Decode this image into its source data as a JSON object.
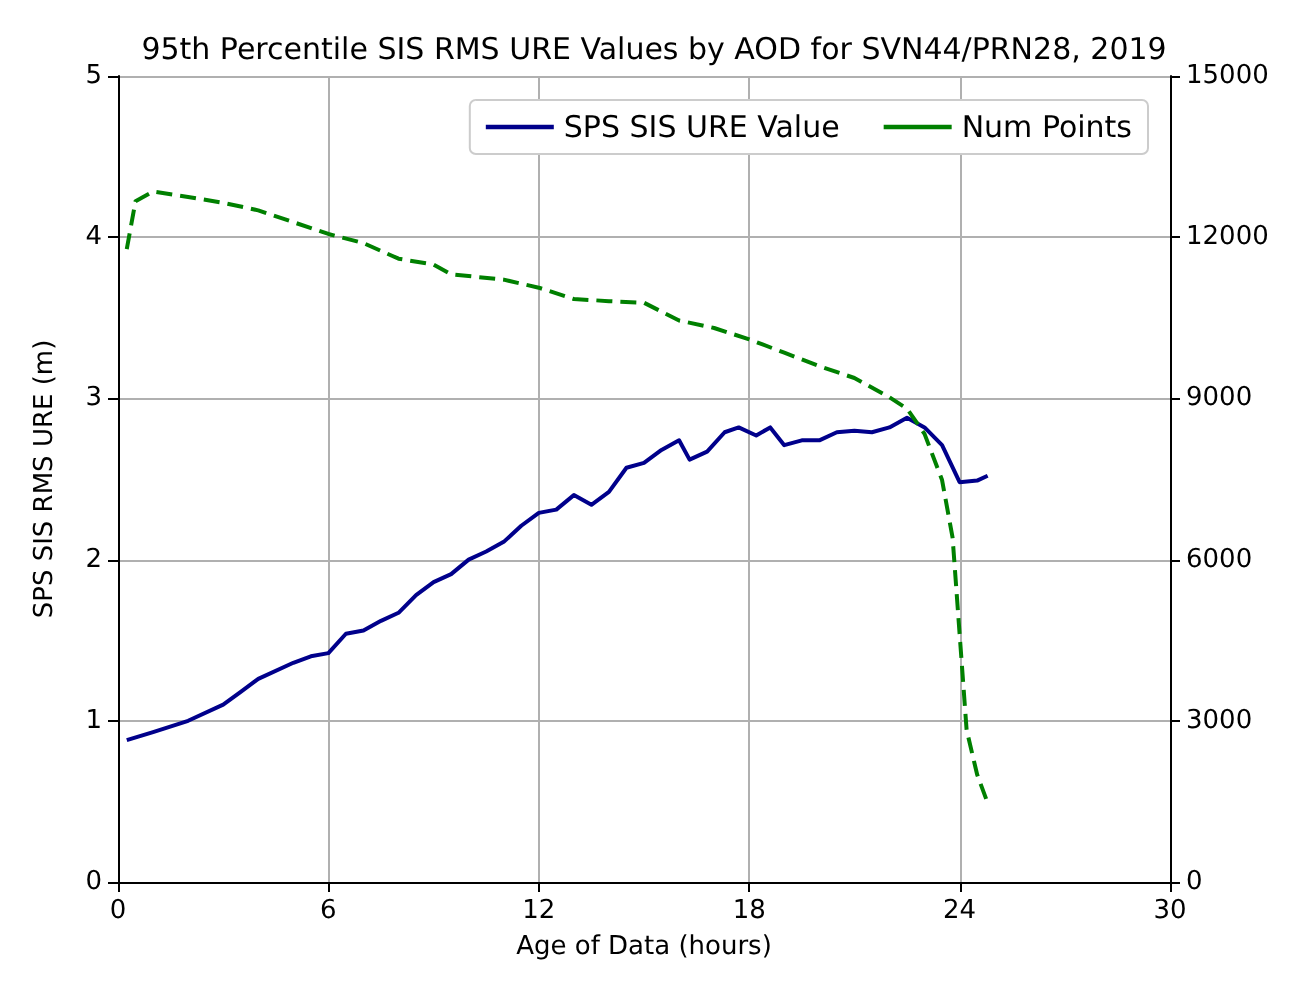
{
  "chart_data": {
    "type": "line",
    "title": "95th Percentile SIS RMS URE Values by AOD for SVN44/PRN28, 2019",
    "xlabel": "Age of Data (hours)",
    "ylabel": "SPS SIS RMS URE (m)",
    "xlim": [
      0,
      30
    ],
    "xticks": [
      0,
      6,
      12,
      18,
      24,
      30
    ],
    "ylim": [
      0,
      5
    ],
    "yticks": [
      0,
      1,
      2,
      3,
      4,
      5
    ],
    "y2lim": [
      0,
      15000
    ],
    "y2ticks": [
      0,
      3000,
      6000,
      9000,
      12000,
      15000
    ],
    "grid": true,
    "legend": "top right",
    "series": [
      {
        "name": "SPS SIS URE Value",
        "color": "#00008b",
        "line_style": "solid",
        "x": [
          0.25,
          1,
          2,
          3,
          3.5,
          4,
          5,
          5.5,
          6,
          6.5,
          7,
          7.5,
          8,
          8.5,
          9,
          9.5,
          10,
          10.5,
          11,
          11.5,
          12,
          12.5,
          13,
          13.5,
          14,
          14.5,
          15,
          15.5,
          16,
          16.3,
          16.8,
          17.3,
          17.7,
          18.2,
          18.6,
          19,
          19.5,
          20,
          20.5,
          21,
          21.5,
          22,
          22.5,
          23,
          23.5,
          24,
          24.5,
          24.8
        ],
        "values": [
          0.88,
          0.93,
          1.0,
          1.1,
          1.18,
          1.26,
          1.36,
          1.4,
          1.42,
          1.54,
          1.56,
          1.62,
          1.67,
          1.78,
          1.86,
          1.91,
          2.0,
          2.05,
          2.11,
          2.21,
          2.29,
          2.31,
          2.4,
          2.34,
          2.42,
          2.57,
          2.6,
          2.68,
          2.74,
          2.62,
          2.67,
          2.79,
          2.82,
          2.77,
          2.82,
          2.71,
          2.74,
          2.74,
          2.79,
          2.8,
          2.79,
          2.82,
          2.88,
          2.82,
          2.71,
          2.48,
          2.49,
          2.52
        ]
      },
      {
        "name": "Num Points",
        "color": "#008000",
        "line_style": "dashed",
        "axis": "y2",
        "x": [
          0.25,
          0.5,
          1,
          2,
          3,
          4,
          5,
          6,
          7,
          8,
          9,
          9.5,
          11,
          12,
          13,
          14,
          15,
          16,
          17,
          18,
          19,
          20,
          21,
          22,
          22.5,
          23,
          23.5,
          23.8,
          24,
          24.2,
          24.5,
          24.8
        ],
        "values": [
          11780,
          12670,
          12850,
          12750,
          12640,
          12500,
          12280,
          12060,
          11890,
          11600,
          11490,
          11310,
          11210,
          11060,
          10850,
          10810,
          10780,
          10450,
          10310,
          10100,
          9850,
          9600,
          9380,
          9020,
          8810,
          8340,
          7480,
          6410,
          4620,
          2830,
          2000,
          1470
        ]
      }
    ]
  }
}
